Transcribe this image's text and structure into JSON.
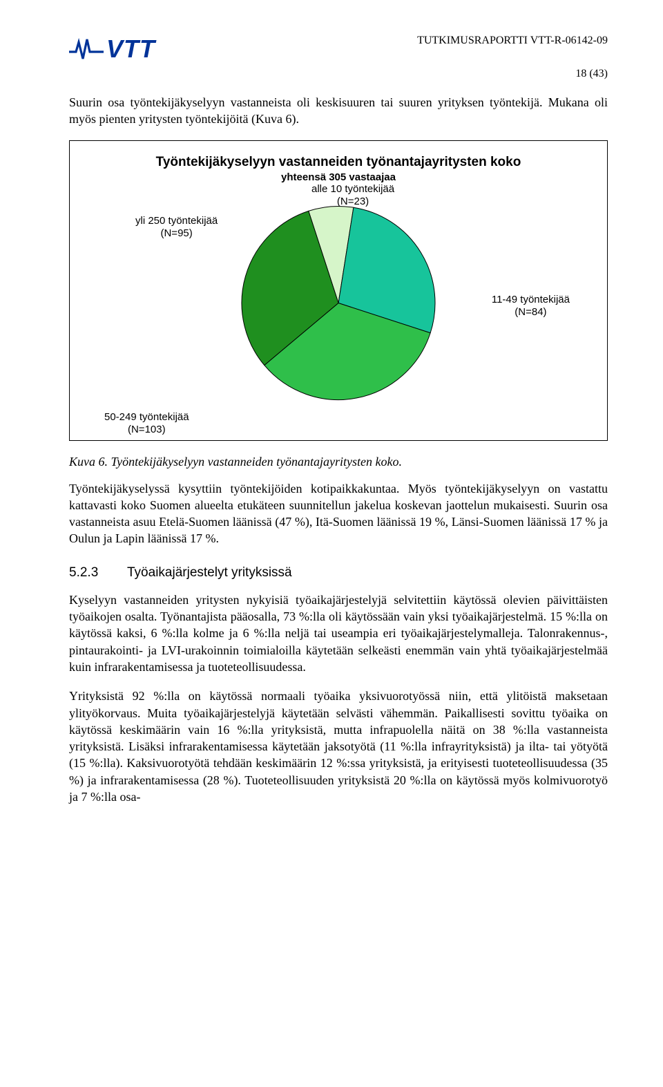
{
  "header": {
    "logo_text": "VTT",
    "report_id": "TUTKIMUSRAPORTTI VTT-R-06142-09",
    "page_number": "18 (43)"
  },
  "para1": "Suurin osa työntekijäkyselyyn vastanneista oli keskisuuren tai suuren yrityksen työntekijä. Mukana oli myös pienten yritysten työntekijöitä (Kuva 6).",
  "chart": {
    "type": "pie",
    "title": "Työntekijäkyselyyn vastanneiden työnantajayritysten koko",
    "subtitle": "yhteensä 305 vastaajaa",
    "background_color": "#ffffff",
    "border_color": "#000000",
    "font_family": "Arial",
    "title_fontsize": 19,
    "subtitle_fontsize": 15,
    "label_fontsize": 15,
    "pie_radius": 140,
    "stroke_color": "#000000",
    "stroke_width": 1,
    "slices": [
      {
        "label_line1": "alle 10 työntekijää",
        "label_line2": "(N=23)",
        "value": 23,
        "color": "#d6f5c9",
        "start_angle": 342,
        "end_angle": 369
      },
      {
        "label_line1": "11-49 työntekijää",
        "label_line2": "(N=84)",
        "value": 84,
        "color": "#17c49b",
        "start_angle": 9,
        "end_angle": 108
      },
      {
        "label_line1": "50-249 työntekijää",
        "label_line2": "(N=103)",
        "value": 103,
        "color": "#2fbf4a",
        "start_angle": 108,
        "end_angle": 230
      },
      {
        "label_line1": "yli 250 työntekijää",
        "label_line2": "(N=95)",
        "value": 95,
        "color": "#1f8f1f",
        "start_angle": 230,
        "end_angle": 342
      }
    ]
  },
  "caption": "Kuva 6. Työntekijäkyselyyn vastanneiden työnantajayritysten koko.",
  "para2": "Työntekijäkyselyssä kysyttiin työntekijöiden kotipaikkakuntaa. Myös työntekijäkyselyyn on vastattu kattavasti koko Suomen alueelta etukäteen suunnitellun jakelua koskevan jaottelun mukaisesti. Suurin osa vastanneista asuu Etelä-Suomen läänissä (47 %), Itä-Suomen läänissä 19 %, Länsi-Suomen läänissä 17 % ja Oulun ja Lapin läänissä 17 %.",
  "section": {
    "number": "5.2.3",
    "title": "Työaikajärjestelyt yrityksissä"
  },
  "para3": "Kyselyyn vastanneiden yritysten nykyisiä työaikajärjestelyjä selvitettiin käytössä olevien päivittäisten työaikojen osalta. Työnantajista pääosalla, 73 %:lla oli käytössään vain yksi työaikajärjestelmä. 15 %:lla on käytössä kaksi, 6 %:lla kolme ja 6 %:lla neljä tai useampia eri työaikajärjestelymalleja. Talonrakennus-, pintaurakointi- ja LVI-urakoinnin toimialoilla käytetään selkeästi enemmän vain yhtä työaikajärjestelmää kuin infrarakentamisessa ja tuoteteollisuudessa.",
  "para4": "Yrityksistä 92 %:lla on käytössä normaali työaika yksivuorotyössä niin, että ylitöistä maksetaan ylityökorvaus. Muita työaikajärjestelyjä käytetään selvästi vähemmän. Paikallisesti sovittu työaika on käytössä keskimäärin vain 16 %:lla yrityksistä, mutta infrapuolella näitä on 38 %:lla vastanneista yrityksistä. Lisäksi infrarakentamisessa käytetään jaksotyötä (11 %:lla infrayrityksistä) ja ilta- tai yötyötä (15 %:lla). Kaksivuorotyötä tehdään keskimäärin 12 %:ssa yrityksistä, ja erityisesti tuoteteollisuudessa (35 %) ja infrarakentamisessa (28 %). Tuoteteollisuuden yrityksistä 20 %:lla on käytössä myös kolmivuorotyö ja 7 %:lla osa-"
}
